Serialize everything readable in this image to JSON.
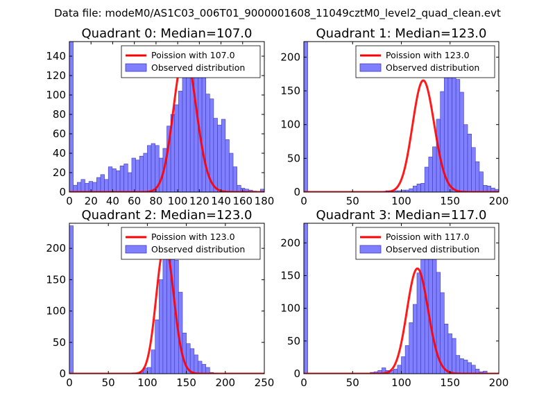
{
  "figure_title": "Data file: modeM0/AS1C03_006T01_9000001608_11049cztM0_level2_quad_clean.evt",
  "colors": {
    "bar_fill": "#7f7fff",
    "bar_edge": "#3b3bbf",
    "poisson_line": "#ff0000",
    "axes": "#000000",
    "background": "#ffffff"
  },
  "chart_data": [
    {
      "type": "bar",
      "title": "Quadrant 0: Median=107.0",
      "bin_width": 3.6,
      "xlim": [
        0,
        180
      ],
      "ylim": [
        0,
        155
      ],
      "xticks": [
        0,
        20,
        40,
        60,
        80,
        100,
        120,
        140,
        160,
        180
      ],
      "xtick_labels": [
        "0",
        "20",
        "40",
        "60",
        "80",
        "100",
        "120",
        "140",
        "160",
        "180"
      ],
      "yticks": [
        0,
        20,
        40,
        60,
        80,
        100,
        120,
        140
      ],
      "ytick_labels": [
        "0",
        "20",
        "40",
        "60",
        "80",
        "100",
        "120",
        "140"
      ],
      "hist_counts": [
        155,
        7,
        10,
        13,
        9,
        11,
        10,
        15,
        18,
        13,
        26,
        24,
        22,
        27,
        29,
        20,
        35,
        33,
        37,
        40,
        48,
        50,
        48,
        35,
        45,
        68,
        80,
        90,
        104,
        120,
        130,
        150,
        141,
        128,
        131,
        101,
        96,
        76,
        69,
        75,
        54,
        40,
        26,
        7,
        4,
        3,
        2,
        1,
        0,
        3
      ],
      "legend": {
        "position": "top-right",
        "entries": [
          "Poission with 107.0",
          "Observed distribution"
        ]
      },
      "series": [
        {
          "name": "Poission with 107.0",
          "type": "line",
          "mean": 107.0,
          "scale": 3744
        },
        {
          "name": "Observed distribution",
          "type": "bar"
        }
      ]
    },
    {
      "type": "bar",
      "title": "Quadrant 1: Median=123.0",
      "bin_width": 4,
      "xlim": [
        0,
        200
      ],
      "ylim": [
        0,
        223
      ],
      "xticks": [
        0,
        50,
        100,
        150,
        200
      ],
      "xtick_labels": [
        "0",
        "50",
        "100",
        "150",
        "200"
      ],
      "yticks": [
        0,
        50,
        100,
        150,
        200
      ],
      "ytick_labels": [
        "0",
        "50",
        "100",
        "150",
        "200"
      ],
      "hist_counts": [
        223,
        0,
        0,
        0,
        0,
        0,
        0,
        0,
        0,
        0,
        0,
        0,
        0,
        0,
        0,
        0,
        0,
        0,
        0,
        0,
        0,
        2,
        2,
        2,
        2,
        3,
        3,
        5,
        9,
        12,
        13,
        37,
        52,
        67,
        108,
        149,
        170,
        180,
        191,
        167,
        148,
        100,
        86,
        66,
        45,
        30,
        10,
        9,
        6,
        4,
        0
      ],
      "legend": {
        "position": "top-right",
        "entries": [
          "Poission with 123.0",
          "Observed distribution"
        ]
      },
      "series": [
        {
          "name": "Poission with 123.0",
          "type": "line",
          "mean": 123.0,
          "scale": 4600
        },
        {
          "name": "Observed distribution",
          "type": "bar"
        }
      ]
    },
    {
      "type": "bar",
      "title": "Quadrant 2: Median=123.0",
      "bin_width": 5,
      "xlim": [
        0,
        250
      ],
      "ylim": [
        0,
        240
      ],
      "xticks": [
        0,
        50,
        100,
        150,
        200,
        250
      ],
      "xtick_labels": [
        "0",
        "50",
        "100",
        "150",
        "200",
        "250"
      ],
      "yticks": [
        0,
        50,
        100,
        150,
        200
      ],
      "ytick_labels": [
        "0",
        "50",
        "100",
        "150",
        "200"
      ],
      "hist_counts": [
        236,
        0,
        0,
        0,
        0,
        0,
        0,
        0,
        0,
        0,
        0,
        0,
        0,
        0,
        0,
        0,
        1,
        1,
        3,
        9,
        10,
        38,
        86,
        150,
        192,
        225,
        213,
        181,
        130,
        65,
        48,
        40,
        30,
        20,
        15,
        10,
        2,
        1,
        0,
        0,
        0,
        0,
        0,
        0,
        0,
        0,
        0,
        0,
        0,
        0
      ],
      "legend": {
        "position": "top-right",
        "entries": [
          "Poission with 123.0",
          "Observed distribution"
        ]
      },
      "series": [
        {
          "name": "Poission with 123.0",
          "type": "line",
          "mean": 123.0,
          "scale": 5750
        },
        {
          "name": "Observed distribution",
          "type": "bar"
        }
      ]
    },
    {
      "type": "bar",
      "title": "Quadrant 3: Median=117.0",
      "bin_width": 4,
      "xlim": [
        0,
        200
      ],
      "ylim": [
        0,
        230
      ],
      "xticks": [
        0,
        50,
        100,
        150,
        200
      ],
      "xtick_labels": [
        "0",
        "50",
        "100",
        "150",
        "200"
      ],
      "yticks": [
        0,
        50,
        100,
        150,
        200
      ],
      "ytick_labels": [
        "0",
        "50",
        "100",
        "150",
        "200"
      ],
      "hist_counts": [
        230,
        0,
        0,
        0,
        0,
        0,
        0,
        0,
        0,
        0,
        0,
        0,
        0,
        0,
        0,
        0,
        0,
        2,
        3,
        5,
        9,
        5,
        5,
        7,
        13,
        26,
        43,
        78,
        106,
        154,
        207,
        208,
        220,
        190,
        155,
        124,
        76,
        61,
        54,
        28,
        23,
        21,
        17,
        13,
        7,
        3,
        4,
        0,
        0,
        0
      ],
      "legend": {
        "position": "top-right",
        "entries": [
          "Poission with 117.0",
          "Observed distribution"
        ]
      },
      "series": [
        {
          "name": "Poission with 117.0",
          "type": "line",
          "mean": 117.0,
          "scale": 4360
        },
        {
          "name": "Observed distribution",
          "type": "bar"
        }
      ]
    }
  ]
}
